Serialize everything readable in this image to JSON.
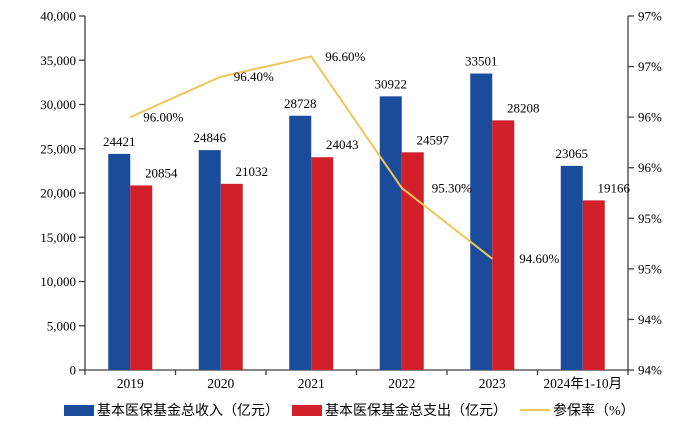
{
  "chart_data": {
    "type": "bar+line",
    "title": "",
    "categories": [
      "2019",
      "2020",
      "2021",
      "2022",
      "2023",
      "2024年1-10月"
    ],
    "series": [
      {
        "name": "基本医保基金总收入（亿元）",
        "type": "bar",
        "color": "#1B4C9B",
        "axis": "left",
        "values": [
          24421,
          24846,
          28728,
          30922,
          33501,
          23065
        ],
        "value_labels": [
          "24421",
          "24846",
          "28728",
          "30922",
          "33501",
          "23065"
        ]
      },
      {
        "name": "基本医保基金总支出（亿元）",
        "type": "bar",
        "color": "#D1202A",
        "axis": "left",
        "values": [
          20854,
          21032,
          24043,
          24597,
          28208,
          19166
        ],
        "value_labels": [
          "20854",
          "21032",
          "24043",
          "24597",
          "28208",
          "19166"
        ]
      },
      {
        "name": "参保率（%）",
        "type": "line",
        "color": "#EFC65A",
        "axis": "right",
        "values": [
          96.0,
          96.4,
          96.6,
          95.3,
          94.6
        ],
        "value_labels": [
          "96.00%",
          "96.40%",
          "96.60%",
          "95.30%",
          "94.60%"
        ]
      }
    ],
    "left_axis": {
      "min": 0,
      "max": 40000,
      "step": 5000,
      "tick_labels": [
        "0",
        "5,000",
        "10,000",
        "15,000",
        "20,000",
        "25,000",
        "30,000",
        "35,000",
        "40,000"
      ]
    },
    "right_axis": {
      "min": 93.5,
      "max": 97,
      "step": 0.5,
      "tick_labels": [
        "94%",
        "94%",
        "95%",
        "95%",
        "96%",
        "96%",
        "97%",
        "97%"
      ]
    },
    "grid": false,
    "legend_position": "bottom",
    "axis_color": "#404040",
    "text_color": "#000000"
  }
}
